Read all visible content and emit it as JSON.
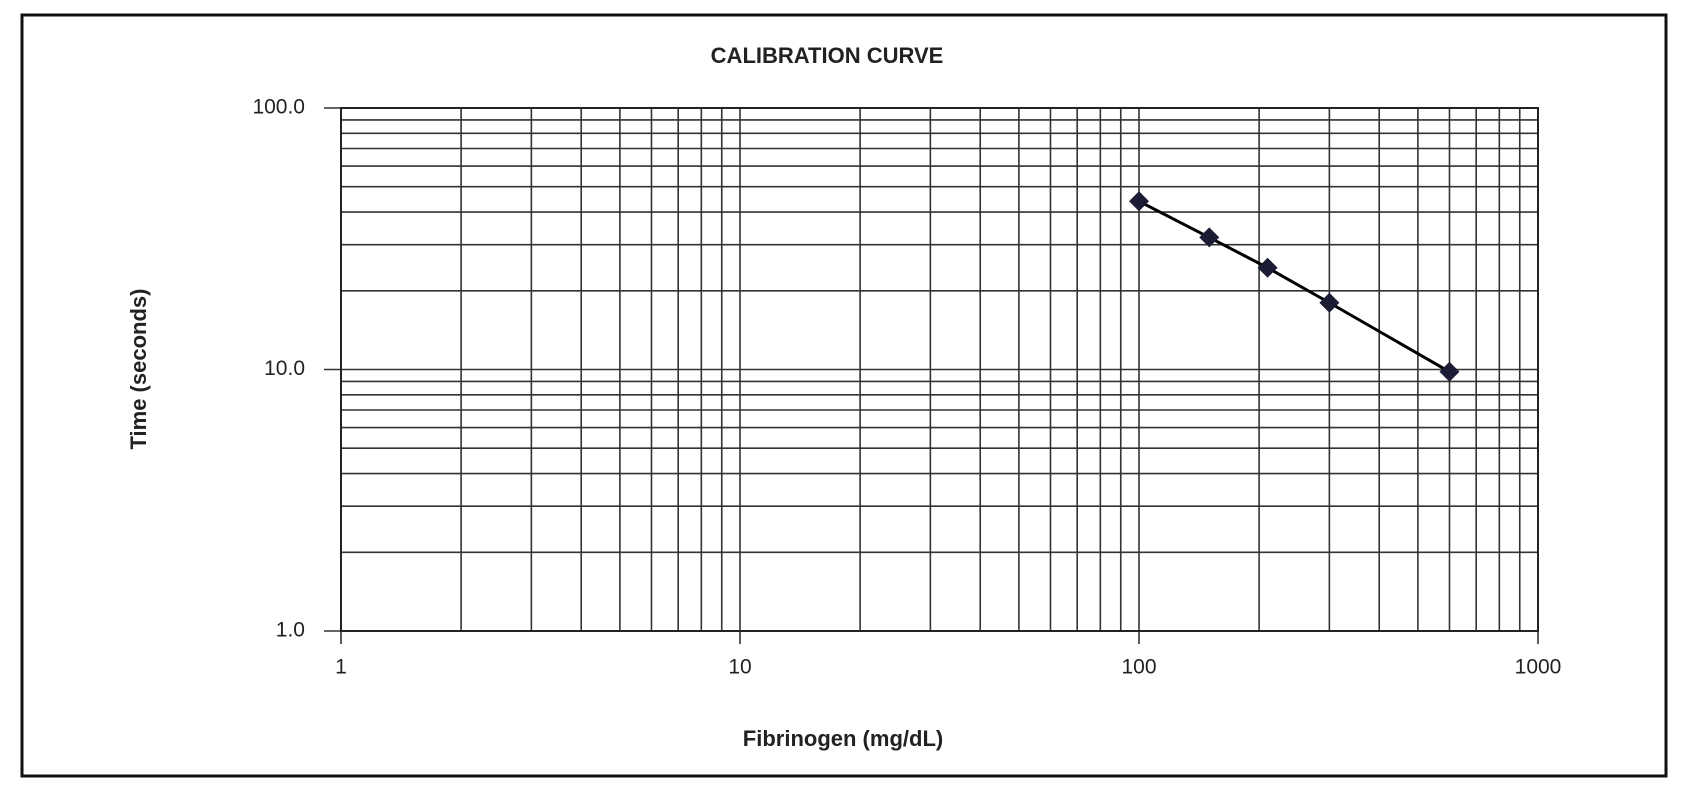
{
  "chart_data": {
    "type": "scatter-line",
    "title": "CALIBRATION CURVE",
    "x_label": "Fibrinogen (mg/dL)",
    "y_label": "Time (seconds)",
    "x": [
      100,
      150,
      210,
      300,
      600
    ],
    "series": [
      {
        "values": [
          44,
          32,
          24.5,
          18,
          9.8
        ],
        "color": "#1c1c34"
      }
    ],
    "xlim": [
      1,
      1000
    ],
    "xticks": [
      1,
      10,
      100,
      1000
    ],
    "ylim": [
      1,
      100
    ],
    "yticks": [
      {
        "value": 1,
        "label": "1.0"
      },
      {
        "value": 10,
        "label": "10.0"
      },
      {
        "value": 100,
        "label": "100.0"
      }
    ],
    "x_log": true,
    "y_log": true,
    "grid": true,
    "minor_grid": true,
    "line_color": "#000000"
  }
}
